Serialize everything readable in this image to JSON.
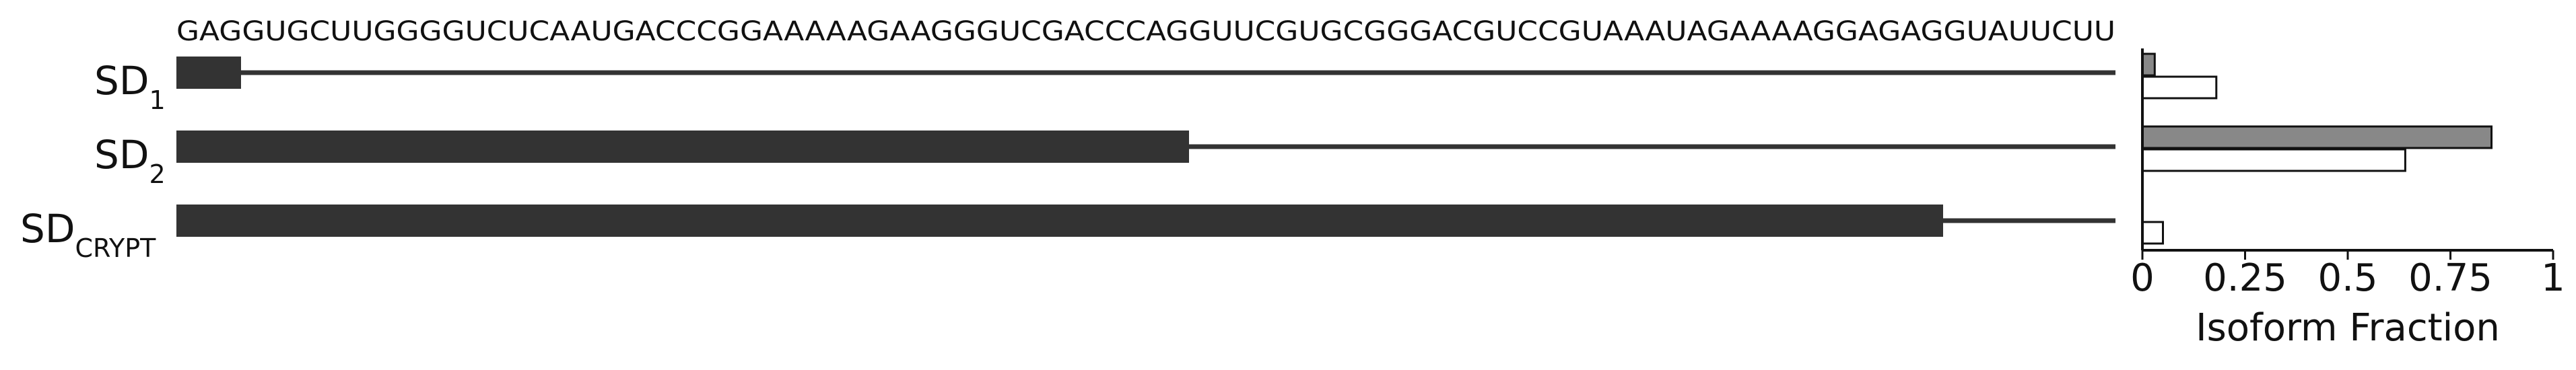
{
  "chart_data": [
    {
      "type": "bar",
      "sequence": "GAGGUGCUUGGGGUCUCAAUGACCCGGAAAAAGAAGGGUCGACCCAGGUUCGUGCGGGACGUCCGUAAAUAGAAAAGGAGAGGUAUUCUU",
      "sequence_length": 90,
      "rows": [
        {
          "label": "SD",
          "subscript": "1",
          "thick_end": 3
        },
        {
          "label": "SD",
          "subscript": "2",
          "thick_end": 47
        },
        {
          "label": "SD",
          "subscript": "CRYPT",
          "thick_end": 82
        }
      ]
    },
    {
      "type": "bar",
      "orientation": "horizontal",
      "xlabel": "Isoform Fraction",
      "xlim": [
        0,
        1
      ],
      "xticks": [
        "0",
        "0.25",
        "0.5",
        "0.75",
        "1"
      ],
      "categories": [
        "SD1",
        "SD2",
        "SDCRYPT"
      ],
      "series": [
        {
          "values": [
            0.03,
            0.85,
            0.0
          ],
          "color": "#888888"
        },
        {
          "values": [
            0.18,
            0.64,
            0.05
          ],
          "color": "#ffffff"
        }
      ]
    }
  ],
  "colors": {
    "track": "#333333",
    "axis": "#111111"
  }
}
